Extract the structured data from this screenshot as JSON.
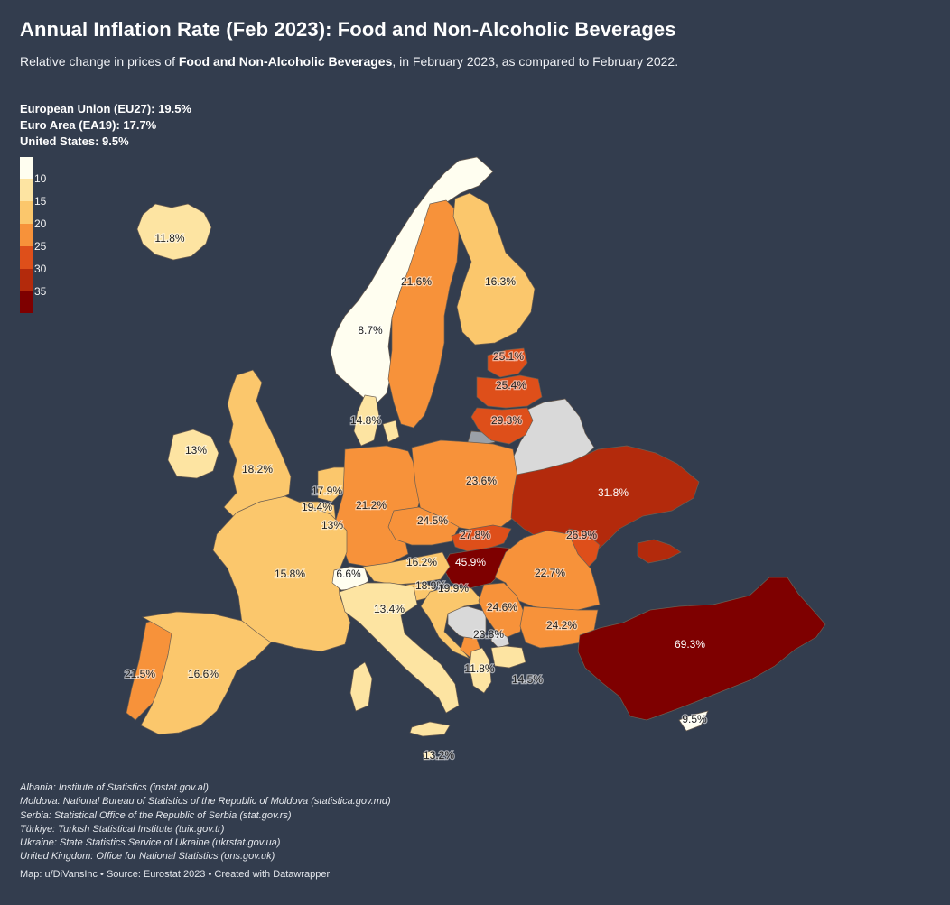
{
  "title": "Annual Inflation Rate (Feb 2023): Food and Non-Alcoholic Beverages",
  "subtitle": {
    "before": "Relative change in prices of ",
    "bold": "Food and Non-Alcoholic Beverages",
    "after": ", in February 2023, as compared to February 2022."
  },
  "stats": [
    "European Union (EU27): 19.5%",
    "Euro Area (EA19): 17.7%",
    "United States: 9.5%"
  ],
  "legend": {
    "ticks": [
      "10",
      "15",
      "20",
      "25",
      "30",
      "35"
    ],
    "colors": [
      "#fffef0",
      "#fde4a2",
      "#fbc76c",
      "#f7923a",
      "#de4f1a",
      "#b32a0c",
      "#7e0000"
    ]
  },
  "colors": {
    "background": "#333d4e",
    "no_data": "#d9d9d9",
    "border": "#6b5e52"
  },
  "regions": [
    {
      "name": "Iceland",
      "value": 11.8,
      "label": "11.8%"
    },
    {
      "name": "Norway",
      "value": 8.7,
      "label": "8.7%"
    },
    {
      "name": "Sweden",
      "value": 21.6,
      "label": "21.6%"
    },
    {
      "name": "Finland",
      "value": 16.3,
      "label": "16.3%"
    },
    {
      "name": "Estonia",
      "value": 25.1,
      "label": "25.1%"
    },
    {
      "name": "Latvia",
      "value": 25.4,
      "label": "25.4%"
    },
    {
      "name": "Lithuania",
      "value": 29.3,
      "label": "29.3%"
    },
    {
      "name": "Denmark",
      "value": 14.8,
      "label": "14.8%"
    },
    {
      "name": "Ireland",
      "value": 13,
      "label": "13%"
    },
    {
      "name": "United Kingdom",
      "value": 18.2,
      "label": "18.2%"
    },
    {
      "name": "Netherlands",
      "value": 17.9,
      "label": "17.9%"
    },
    {
      "name": "Belgium",
      "value": 19.4,
      "label": "19.4%"
    },
    {
      "name": "Luxembourg",
      "value": 13,
      "label": "13%"
    },
    {
      "name": "Germany",
      "value": 21.2,
      "label": "21.2%"
    },
    {
      "name": "Poland",
      "value": 23.6,
      "label": "23.6%"
    },
    {
      "name": "Czechia",
      "value": 24.5,
      "label": "24.5%"
    },
    {
      "name": "Slovakia",
      "value": 27.8,
      "label": "27.8%"
    },
    {
      "name": "Ukraine",
      "value": 31.8,
      "label": "31.8%"
    },
    {
      "name": "Moldova",
      "value": 26.9,
      "label": "26.9%"
    },
    {
      "name": "Hungary",
      "value": 45.9,
      "label": "45.9%"
    },
    {
      "name": "Romania",
      "value": 22.7,
      "label": "22.7%"
    },
    {
      "name": "Austria",
      "value": 16.2,
      "label": "16.2%"
    },
    {
      "name": "France",
      "value": 15.8,
      "label": "15.8%"
    },
    {
      "name": "Switzerland",
      "value": 6.6,
      "label": "6.6%"
    },
    {
      "name": "Slovenia",
      "value": 18.9,
      "label": "18.9%"
    },
    {
      "name": "Croatia",
      "value": 19.9,
      "label": "19.9%"
    },
    {
      "name": "Serbia",
      "value": 24.6,
      "label": "24.6%"
    },
    {
      "name": "Bulgaria",
      "value": 24.2,
      "label": "24.2%"
    },
    {
      "name": "Montenegro",
      "value": 23.8,
      "label": "23.8%"
    },
    {
      "name": "Albania",
      "value": 11.8,
      "label": "11.8%"
    },
    {
      "name": "North Macedonia",
      "value": 14.5,
      "label": "14.5%"
    },
    {
      "name": "Italy",
      "value": 13.4,
      "label": "13.4%"
    },
    {
      "name": "Portugal",
      "value": 21.5,
      "label": "21.5%"
    },
    {
      "name": "Spain",
      "value": 16.6,
      "label": "16.6%"
    },
    {
      "name": "Türkiye",
      "value": 69.3,
      "label": "69.3%"
    },
    {
      "name": "Cyprus",
      "value": 9.5,
      "label": "9.5%"
    },
    {
      "name": "Malta",
      "value": 13.2,
      "label": "13.2%"
    }
  ],
  "no_data_regions": [
    "Belarus",
    "Bosnia and Herzegovina",
    "Kosovo",
    "Russia (Kaliningrad)"
  ],
  "notes": [
    "Albania: Institute of Statistics (instat.gov.al)",
    "Moldova: National Bureau of Statistics of the Republic of Moldova (statistica.gov.md)",
    "Serbia: Statistical Office of the Republic of Serbia (stat.gov.rs)",
    "Türkiye: Turkish Statistical Institute (tuik.gov.tr)",
    "Ukraine: State Statistics Service of Ukraine (ukrstat.gov.ua)",
    "United Kingdom: Office for National Statistics (ons.gov.uk)"
  ],
  "credit": "Map: u/DiVansInc • Source: Eurostat 2023 • Created with Datawrapper"
}
